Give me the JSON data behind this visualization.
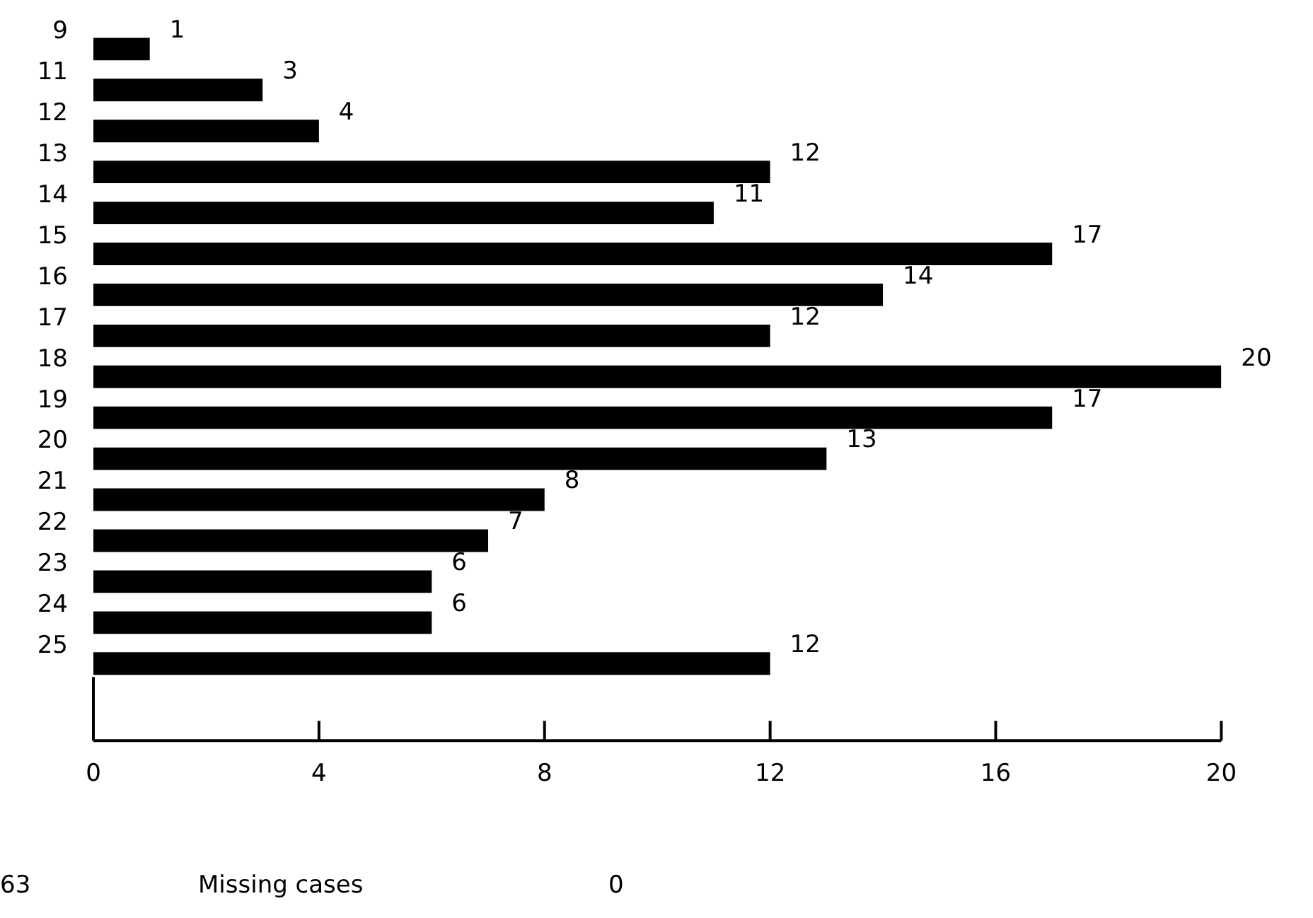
{
  "chart_data": {
    "type": "bar",
    "orientation": "horizontal",
    "categories": [
      "9",
      "11",
      "12",
      "13",
      "14",
      "15",
      "16",
      "17",
      "18",
      "19",
      "20",
      "21",
      "22",
      "23",
      "24",
      "25"
    ],
    "values": [
      1,
      3,
      4,
      12,
      11,
      17,
      14,
      12,
      20,
      17,
      13,
      8,
      7,
      6,
      6,
      12
    ],
    "color": "#000000",
    "xlim": [
      0,
      20
    ],
    "xticks": [
      0,
      4,
      8,
      12,
      16,
      20
    ],
    "grid": false,
    "legend": false,
    "data_labels": true,
    "annotations": [
      "63",
      "Missing cases",
      "0"
    ]
  }
}
